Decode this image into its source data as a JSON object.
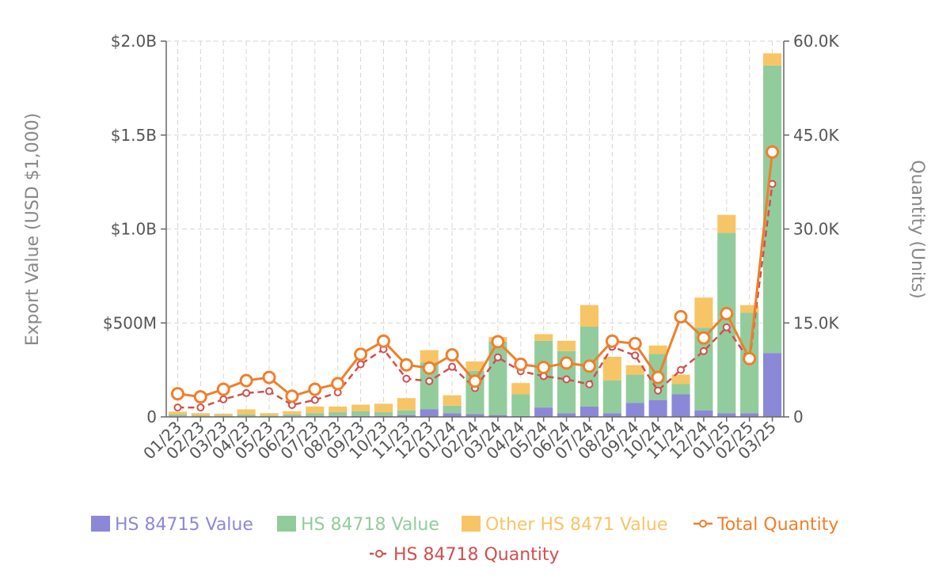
{
  "chart_data": {
    "type": "bar",
    "stacked": true,
    "categories": [
      "01/23",
      "02/23",
      "03/23",
      "04/23",
      "05/23",
      "06/23",
      "07/23",
      "08/23",
      "09/23",
      "10/23",
      "11/23",
      "12/23",
      "01/24",
      "02/24",
      "03/24",
      "04/24",
      "05/24",
      "06/24",
      "07/24",
      "08/24",
      "09/24",
      "10/24",
      "11/24",
      "12/24",
      "01/25",
      "02/25",
      "03/25"
    ],
    "y_left": {
      "label": "Export Value (USD $1,000)",
      "range": [
        0,
        2000000000
      ],
      "ticks": [
        0,
        500000000,
        1000000000,
        1500000000,
        2000000000
      ],
      "tick_labels": [
        "0",
        "$500M",
        "$1.0B",
        "$1.5B",
        "$2.0B"
      ]
    },
    "y_right": {
      "label": "Quantity (Units)",
      "range": [
        0,
        60000
      ],
      "ticks": [
        0,
        15000,
        30000,
        45000,
        60000
      ],
      "tick_labels": [
        "0",
        "15.0K",
        "30.0K",
        "45.0K",
        "60.0K"
      ]
    },
    "grid": true,
    "legend_position": "bottom",
    "series": [
      {
        "name": "HS 84715 Value",
        "kind": "bar",
        "axis": "left",
        "color": "#8c88d8",
        "values": [
          3000000,
          3000000,
          2000000,
          3000000,
          2000000,
          3000000,
          5000000,
          5000000,
          5000000,
          5000000,
          10000000,
          40000000,
          20000000,
          15000000,
          10000000,
          5000000,
          50000000,
          20000000,
          55000000,
          20000000,
          75000000,
          90000000,
          120000000,
          35000000,
          20000000,
          20000000,
          340000000
        ]
      },
      {
        "name": "HS 84718 Value",
        "kind": "bar",
        "axis": "left",
        "color": "#93cc9c",
        "values": [
          10000000,
          5000000,
          5000000,
          10000000,
          5000000,
          10000000,
          15000000,
          20000000,
          25000000,
          20000000,
          25000000,
          250000000,
          40000000,
          230000000,
          390000000,
          115000000,
          355000000,
          330000000,
          425000000,
          175000000,
          150000000,
          245000000,
          55000000,
          440000000,
          960000000,
          535000000,
          1530000000
        ]
      },
      {
        "name": "Other HS 8471 Value",
        "kind": "bar",
        "axis": "left",
        "color": "#f7c566",
        "values": [
          15000000,
          12000000,
          10000000,
          27000000,
          13000000,
          17000000,
          35000000,
          30000000,
          35000000,
          45000000,
          65000000,
          65000000,
          55000000,
          50000000,
          25000000,
          60000000,
          35000000,
          55000000,
          115000000,
          125000000,
          50000000,
          45000000,
          50000000,
          160000000,
          95000000,
          40000000,
          65000000
        ]
      },
      {
        "name": "Total Quantity",
        "kind": "line",
        "axis": "right",
        "color": "#f07f2a",
        "dashed": false,
        "values": [
          3700,
          3200,
          4400,
          5800,
          6300,
          3300,
          4400,
          5300,
          10000,
          12100,
          8300,
          7800,
          9900,
          5700,
          12000,
          8400,
          7900,
          8600,
          8100,
          12100,
          11700,
          6300,
          16000,
          12600,
          16500,
          9300,
          42300
        ]
      },
      {
        "name": "HS 84718 Quantity",
        "kind": "line",
        "axis": "right",
        "color": "#d14f4f",
        "dashed": true,
        "values": [
          1500,
          1500,
          2800,
          3800,
          4100,
          1900,
          2700,
          3900,
          8400,
          10800,
          6100,
          5700,
          8000,
          4600,
          9500,
          7300,
          6500,
          6000,
          5200,
          11200,
          9800,
          4200,
          7500,
          10500,
          14300,
          9000,
          37200
        ]
      }
    ]
  }
}
